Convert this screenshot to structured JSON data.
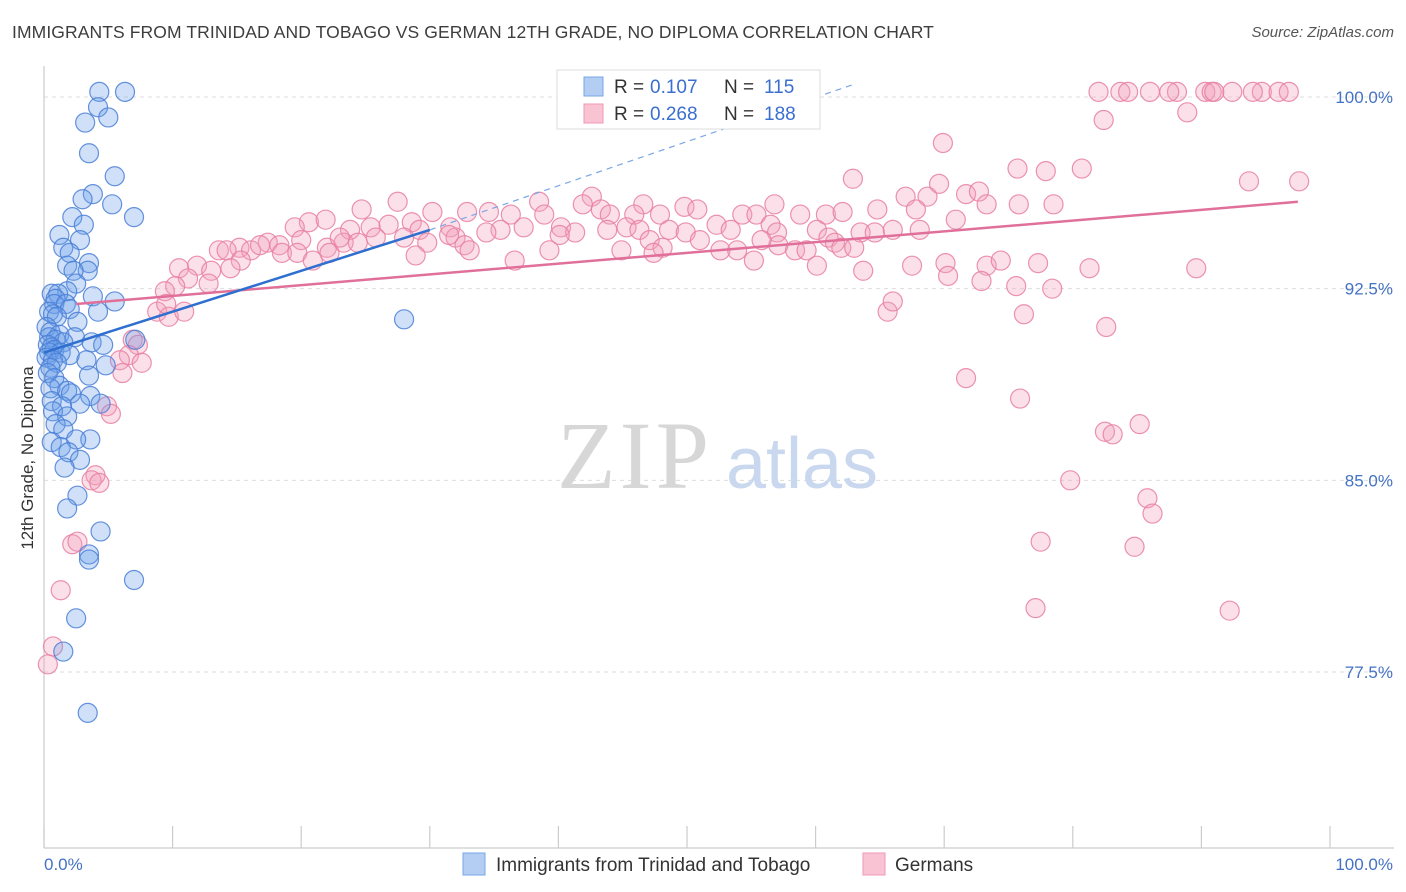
{
  "title": "IMMIGRANTS FROM TRINIDAD AND TOBAGO VS GERMAN 12TH GRADE, NO DIPLOMA CORRELATION CHART",
  "source": "Source: ZipAtlas.com",
  "watermark": {
    "zip": "ZIP",
    "atlas": "atlas"
  },
  "chart_data": {
    "type": "scatter",
    "xlabel": "",
    "ylabel": "12th Grade, No Diploma",
    "xlim": [
      0,
      100
    ],
    "ylim": [
      70,
      100.8
    ],
    "x_tick_labels": [
      "0.0%",
      "100.0%"
    ],
    "y_ticks": [
      {
        "value": 100.0,
        "label": "100.0%"
      },
      {
        "value": 92.5,
        "label": "92.5%"
      },
      {
        "value": 85.0,
        "label": "85.0%"
      },
      {
        "value": 77.5,
        "label": "77.5%"
      }
    ],
    "grid": "horizontal-dashed",
    "legend_placement": "top-center",
    "series": [
      {
        "name": "Immigrants from Trinidad and Tobago",
        "color": "#6a9ee8",
        "stroke": "#4a7fd6",
        "legend": {
          "r_label": "R = ",
          "r": "0.107",
          "n_label": "N = ",
          "n": "115"
        },
        "trend": {
          "x": [
            0.0,
            30.0
          ],
          "y": [
            90.0,
            94.8
          ],
          "color": "#2e6fd0"
        },
        "trend_ext": {
          "x": [
            30.0,
            63.0
          ],
          "y": [
            94.8,
            100.5
          ],
          "color": "#7aa6e6"
        },
        "points": [
          [
            4.3,
            100.2
          ],
          [
            6.3,
            100.2
          ],
          [
            4.2,
            99.6
          ],
          [
            3.2,
            99.0
          ],
          [
            5.0,
            99.2
          ],
          [
            3.5,
            97.8
          ],
          [
            5.5,
            96.9
          ],
          [
            3.8,
            96.2
          ],
          [
            3.0,
            96.0
          ],
          [
            5.3,
            95.8
          ],
          [
            7.0,
            95.3
          ],
          [
            2.2,
            95.3
          ],
          [
            3.1,
            95.0
          ],
          [
            1.2,
            94.6
          ],
          [
            2.8,
            94.4
          ],
          [
            1.5,
            94.1
          ],
          [
            2.0,
            93.9
          ],
          [
            3.5,
            93.5
          ],
          [
            1.8,
            93.4
          ],
          [
            3.4,
            93.2
          ],
          [
            2.3,
            93.2
          ],
          [
            2.5,
            92.7
          ],
          [
            1.8,
            92.4
          ],
          [
            0.6,
            92.3
          ],
          [
            1.1,
            92.3
          ],
          [
            3.8,
            92.2
          ],
          [
            0.9,
            92.1
          ],
          [
            5.5,
            92.0
          ],
          [
            0.8,
            91.9
          ],
          [
            1.7,
            91.9
          ],
          [
            2.0,
            91.7
          ],
          [
            4.2,
            91.6
          ],
          [
            0.4,
            91.6
          ],
          [
            0.7,
            91.5
          ],
          [
            1.0,
            91.4
          ],
          [
            2.6,
            91.2
          ],
          [
            0.2,
            91.0
          ],
          [
            0.5,
            90.8
          ],
          [
            1.2,
            90.7
          ],
          [
            2.4,
            90.6
          ],
          [
            0.4,
            90.6
          ],
          [
            0.9,
            90.5
          ],
          [
            7.1,
            90.5
          ],
          [
            1.5,
            90.4
          ],
          [
            3.7,
            90.4
          ],
          [
            0.3,
            90.3
          ],
          [
            0.6,
            90.2
          ],
          [
            0.8,
            90.1
          ],
          [
            4.6,
            90.3
          ],
          [
            0.4,
            90.0
          ],
          [
            1.3,
            90.0
          ],
          [
            2.0,
            89.9
          ],
          [
            0.2,
            89.8
          ],
          [
            0.7,
            89.7
          ],
          [
            3.3,
            89.7
          ],
          [
            1.0,
            89.6
          ],
          [
            4.8,
            89.5
          ],
          [
            0.5,
            89.4
          ],
          [
            0.3,
            89.2
          ],
          [
            0.8,
            89.0
          ],
          [
            3.5,
            89.1
          ],
          [
            1.2,
            88.7
          ],
          [
            0.5,
            88.6
          ],
          [
            1.8,
            88.5
          ],
          [
            2.1,
            88.4
          ],
          [
            3.6,
            88.3
          ],
          [
            0.6,
            88.1
          ],
          [
            2.8,
            88.0
          ],
          [
            4.4,
            88.0
          ],
          [
            1.4,
            87.9
          ],
          [
            0.7,
            87.7
          ],
          [
            1.8,
            87.5
          ],
          [
            0.9,
            87.2
          ],
          [
            1.5,
            87.0
          ],
          [
            3.6,
            86.6
          ],
          [
            2.5,
            86.6
          ],
          [
            0.6,
            86.5
          ],
          [
            1.3,
            86.3
          ],
          [
            1.9,
            86.1
          ],
          [
            2.8,
            85.8
          ],
          [
            1.6,
            85.5
          ],
          [
            2.6,
            84.4
          ],
          [
            1.8,
            83.9
          ],
          [
            4.4,
            83.0
          ],
          [
            3.5,
            82.1
          ],
          [
            3.5,
            81.9
          ],
          [
            7.0,
            81.1
          ],
          [
            2.5,
            79.6
          ],
          [
            1.5,
            78.3
          ],
          [
            3.4,
            75.9
          ],
          [
            28.0,
            91.3
          ]
        ]
      },
      {
        "name": "Germans",
        "color": "#f4a0bb",
        "stroke": "#e77fa1",
        "legend": {
          "r_label": "R = ",
          "r": "0.268",
          "n_label": "N = ",
          "n": "188"
        },
        "trend": {
          "x": [
            2.5,
            97.5
          ],
          "y": [
            91.9,
            95.9
          ],
          "color": "#e0709a"
        },
        "points": [
          [
            82.0,
            100.2
          ],
          [
            83.7,
            100.2
          ],
          [
            84.3,
            100.2
          ],
          [
            86.0,
            100.2
          ],
          [
            88.1,
            100.2
          ],
          [
            87.5,
            100.2
          ],
          [
            90.3,
            100.2
          ],
          [
            90.8,
            100.2
          ],
          [
            92.4,
            100.2
          ],
          [
            94.7,
            100.2
          ],
          [
            96.0,
            100.2
          ],
          [
            96.8,
            100.2
          ],
          [
            94.0,
            100.2
          ],
          [
            91.0,
            100.2
          ],
          [
            82.4,
            99.1
          ],
          [
            88.9,
            99.4
          ],
          [
            69.9,
            98.2
          ],
          [
            80.7,
            97.2
          ],
          [
            62.9,
            96.8
          ],
          [
            93.7,
            96.7
          ],
          [
            97.6,
            96.7
          ],
          [
            75.7,
            97.2
          ],
          [
            77.9,
            97.1
          ],
          [
            69.6,
            96.6
          ],
          [
            71.7,
            96.2
          ],
          [
            72.7,
            96.3
          ],
          [
            68.7,
            96.1
          ],
          [
            73.3,
            95.8
          ],
          [
            67.0,
            96.1
          ],
          [
            75.8,
            95.8
          ],
          [
            78.5,
            95.8
          ],
          [
            56.8,
            95.8
          ],
          [
            42.6,
            96.1
          ],
          [
            38.5,
            95.9
          ],
          [
            41.9,
            95.8
          ],
          [
            46.6,
            95.8
          ],
          [
            49.8,
            95.7
          ],
          [
            43.3,
            95.6
          ],
          [
            50.8,
            95.6
          ],
          [
            27.5,
            95.9
          ],
          [
            24.7,
            95.6
          ],
          [
            30.2,
            95.5
          ],
          [
            32.9,
            95.5
          ],
          [
            34.6,
            95.5
          ],
          [
            36.3,
            95.4
          ],
          [
            38.9,
            95.4
          ],
          [
            44.0,
            95.4
          ],
          [
            45.9,
            95.4
          ],
          [
            47.9,
            95.4
          ],
          [
            54.3,
            95.4
          ],
          [
            55.4,
            95.4
          ],
          [
            58.8,
            95.4
          ],
          [
            60.8,
            95.4
          ],
          [
            62.1,
            95.5
          ],
          [
            64.8,
            95.6
          ],
          [
            67.8,
            95.6
          ],
          [
            70.9,
            95.2
          ],
          [
            20.6,
            95.1
          ],
          [
            21.9,
            95.2
          ],
          [
            23.8,
            94.8
          ],
          [
            25.4,
            94.9
          ],
          [
            26.8,
            95.0
          ],
          [
            28.6,
            95.1
          ],
          [
            29.2,
            94.8
          ],
          [
            31.6,
            94.9
          ],
          [
            35.5,
            94.8
          ],
          [
            37.3,
            94.9
          ],
          [
            40.2,
            94.9
          ],
          [
            41.3,
            94.7
          ],
          [
            43.8,
            94.8
          ],
          [
            45.3,
            94.9
          ],
          [
            46.3,
            94.8
          ],
          [
            48.6,
            94.8
          ],
          [
            49.9,
            94.7
          ],
          [
            52.3,
            95.0
          ],
          [
            53.4,
            94.8
          ],
          [
            56.5,
            95.0
          ],
          [
            57.0,
            94.7
          ],
          [
            60.1,
            94.8
          ],
          [
            61.0,
            94.5
          ],
          [
            63.5,
            94.7
          ],
          [
            66.0,
            94.8
          ],
          [
            68.1,
            94.8
          ],
          [
            19.5,
            94.9
          ],
          [
            17.4,
            94.3
          ],
          [
            20.0,
            94.4
          ],
          [
            22.0,
            94.1
          ],
          [
            23.3,
            94.3
          ],
          [
            24.4,
            94.3
          ],
          [
            32.0,
            94.5
          ],
          [
            40.1,
            94.6
          ],
          [
            47.1,
            94.4
          ],
          [
            51.0,
            94.4
          ],
          [
            52.6,
            94.0
          ],
          [
            57.1,
            94.2
          ],
          [
            61.5,
            94.3
          ],
          [
            62.0,
            94.1
          ],
          [
            63.0,
            94.1
          ],
          [
            15.2,
            94.1
          ],
          [
            16.1,
            94.0
          ],
          [
            16.8,
            94.2
          ],
          [
            18.3,
            94.2
          ],
          [
            18.5,
            93.9
          ],
          [
            19.7,
            93.9
          ],
          [
            20.9,
            93.6
          ],
          [
            23.0,
            94.5
          ],
          [
            25.8,
            94.5
          ],
          [
            28.0,
            94.5
          ],
          [
            29.8,
            94.3
          ],
          [
            31.5,
            94.6
          ],
          [
            32.7,
            94.2
          ],
          [
            33.1,
            94.0
          ],
          [
            34.4,
            94.7
          ],
          [
            39.3,
            94.0
          ],
          [
            44.9,
            94.0
          ],
          [
            48.1,
            94.1
          ],
          [
            53.9,
            94.0
          ],
          [
            55.8,
            94.4
          ],
          [
            58.4,
            94.0
          ],
          [
            59.3,
            94.0
          ],
          [
            64.6,
            94.7
          ],
          [
            13.6,
            94.0
          ],
          [
            14.2,
            94.0
          ],
          [
            11.9,
            93.4
          ],
          [
            13.0,
            93.2
          ],
          [
            10.5,
            93.3
          ],
          [
            11.2,
            92.9
          ],
          [
            15.3,
            93.6
          ],
          [
            22.2,
            93.9
          ],
          [
            28.9,
            93.8
          ],
          [
            36.6,
            93.6
          ],
          [
            47.4,
            93.9
          ],
          [
            55.2,
            93.6
          ],
          [
            60.1,
            93.4
          ],
          [
            63.7,
            93.2
          ],
          [
            67.5,
            93.4
          ],
          [
            70.1,
            93.5
          ],
          [
            73.3,
            93.4
          ],
          [
            74.4,
            93.6
          ],
          [
            77.3,
            93.5
          ],
          [
            81.3,
            93.3
          ],
          [
            89.6,
            93.3
          ],
          [
            10.2,
            92.6
          ],
          [
            9.4,
            92.4
          ],
          [
            12.8,
            92.7
          ],
          [
            14.5,
            93.3
          ],
          [
            70.3,
            93.0
          ],
          [
            72.9,
            92.8
          ],
          [
            75.6,
            92.6
          ],
          [
            78.4,
            92.5
          ],
          [
            8.8,
            91.6
          ],
          [
            9.7,
            91.4
          ],
          [
            9.5,
            91.9
          ],
          [
            10.9,
            91.6
          ],
          [
            65.6,
            91.6
          ],
          [
            66.0,
            92.0
          ],
          [
            76.2,
            91.5
          ],
          [
            82.6,
            91.0
          ],
          [
            6.9,
            90.5
          ],
          [
            7.3,
            90.3
          ],
          [
            6.6,
            89.9
          ],
          [
            5.9,
            89.7
          ],
          [
            7.6,
            89.6
          ],
          [
            6.1,
            89.2
          ],
          [
            71.7,
            89.0
          ],
          [
            75.9,
            88.2
          ],
          [
            4.9,
            87.9
          ],
          [
            5.2,
            87.6
          ],
          [
            85.2,
            87.2
          ],
          [
            82.5,
            86.9
          ],
          [
            83.1,
            86.8
          ],
          [
            79.8,
            85.0
          ],
          [
            4.0,
            85.2
          ],
          [
            3.7,
            85.0
          ],
          [
            4.3,
            84.9
          ],
          [
            85.8,
            84.3
          ],
          [
            86.2,
            83.7
          ],
          [
            2.2,
            82.5
          ],
          [
            2.6,
            82.6
          ],
          [
            77.5,
            82.6
          ],
          [
            84.8,
            82.4
          ],
          [
            1.3,
            80.7
          ],
          [
            0.7,
            78.5
          ],
          [
            0.3,
            77.8
          ],
          [
            77.1,
            80.0
          ],
          [
            92.2,
            79.9
          ]
        ]
      }
    ]
  }
}
